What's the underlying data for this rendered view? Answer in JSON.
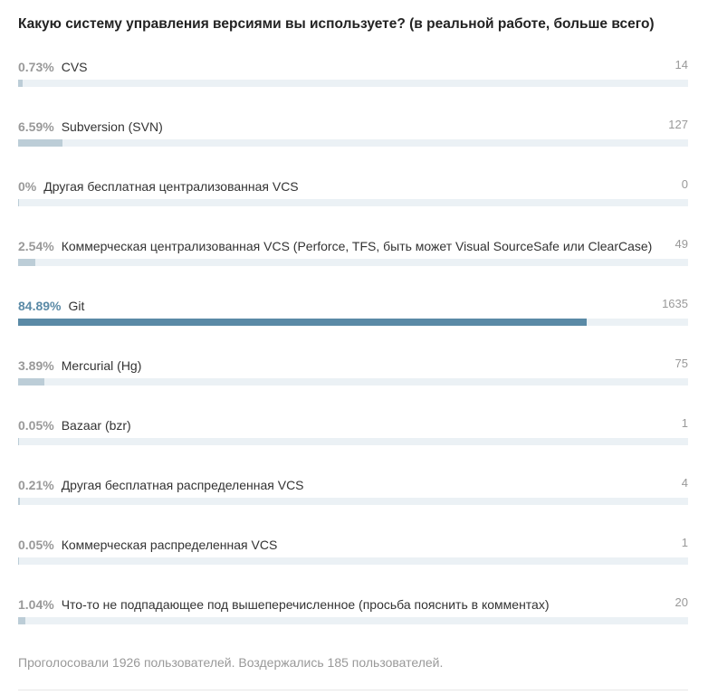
{
  "poll": {
    "title": "Какую систему управления версиями вы используете? (в реальной работе, больше всего)",
    "variants": [
      {
        "percent_label": "0.73%",
        "label": "CVS",
        "votes": "14",
        "share": 0.0073,
        "winner": false
      },
      {
        "percent_label": "6.59%",
        "label": "Subversion (SVN)",
        "votes": "127",
        "share": 0.0659,
        "winner": false
      },
      {
        "percent_label": "0%",
        "label": "Другая бесплатная централизованная VCS",
        "votes": "0",
        "share": 0,
        "winner": false
      },
      {
        "percent_label": "2.54%",
        "label": "Коммерческая централизованная VCS (Perforce, TFS, быть может Visual SourceSafe или ClearCase)",
        "votes": "49",
        "share": 0.0254,
        "winner": false
      },
      {
        "percent_label": "84.89%",
        "label": "Git",
        "votes": "1635",
        "share": 0.8489,
        "winner": true
      },
      {
        "percent_label": "3.89%",
        "label": "Mercurial (Hg)",
        "votes": "75",
        "share": 0.0389,
        "winner": false
      },
      {
        "percent_label": "0.05%",
        "label": "Bazaar (bzr)",
        "votes": "1",
        "share": 0.0005,
        "winner": false
      },
      {
        "percent_label": "0.21%",
        "label": "Другая бесплатная распределенная VCS",
        "votes": "4",
        "share": 0.0021,
        "winner": false
      },
      {
        "percent_label": "0.05%",
        "label": "Коммерческая распределенная VCS",
        "votes": "1",
        "share": 0.0005,
        "winner": false
      },
      {
        "percent_label": "1.04%",
        "label": "Что-то не подпадающее под вышеперечисленное (просьба пояснить в комментах)",
        "votes": "20",
        "share": 0.0104,
        "winner": false
      }
    ],
    "summary": "Проголосовали 1926 пользователей. Воздержались 185 пользователей."
  },
  "colors": {
    "bar_track": "#ebf1f5",
    "bar_fill": "#bccdd7",
    "bar_fill_winner": "#5a8aa6",
    "percent_winner": "#5a8aa6",
    "muted_text": "#999999"
  }
}
